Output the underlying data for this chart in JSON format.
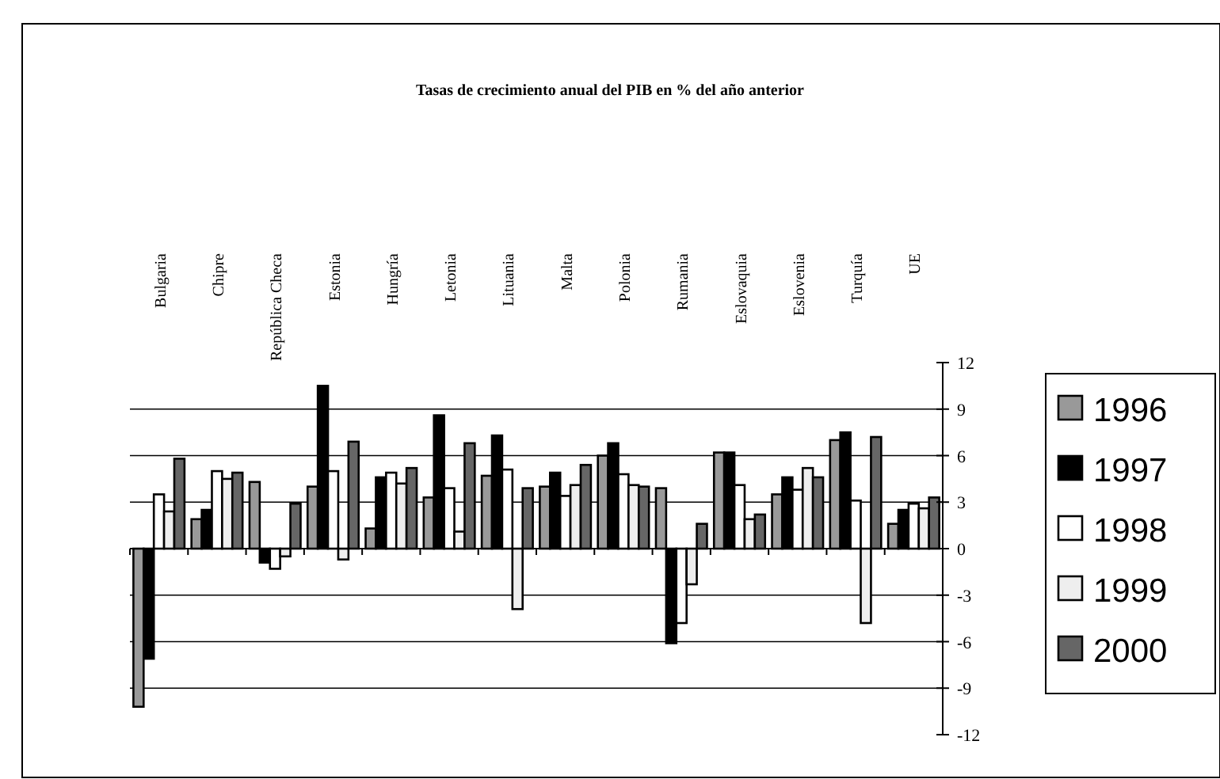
{
  "chart_data": {
    "type": "bar",
    "title": "Tasas de crecimiento anual del PIB en % del año anterior",
    "categories": [
      "Bulgaria",
      "Chipre",
      "República Checa",
      "Estonia",
      "Hungría",
      "Letonia",
      "Lituania",
      "Malta",
      "Polonia",
      "Rumania",
      "Eslovaquia",
      "Eslovenia",
      "Turquía",
      "UE"
    ],
    "series": [
      {
        "name": "1996",
        "color": "#999999",
        "values": [
          -10.2,
          1.9,
          4.3,
          4.0,
          1.3,
          3.3,
          4.7,
          4.0,
          6.0,
          3.9,
          6.2,
          3.5,
          7.0,
          1.6
        ]
      },
      {
        "name": "1997",
        "color": "#000000",
        "values": [
          -7.1,
          2.5,
          -0.9,
          10.5,
          4.6,
          8.6,
          7.3,
          4.9,
          6.8,
          -6.1,
          6.2,
          4.6,
          7.5,
          2.5
        ]
      },
      {
        "name": "1998",
        "color": "#ffffff",
        "values": [
          3.5,
          5.0,
          -1.3,
          5.0,
          4.9,
          3.9,
          5.1,
          3.4,
          4.8,
          -4.8,
          4.1,
          3.8,
          3.1,
          2.9
        ]
      },
      {
        "name": "1999",
        "color": "#eeeeee",
        "values": [
          2.4,
          4.5,
          -0.5,
          -0.7,
          4.2,
          1.1,
          -3.9,
          4.1,
          4.1,
          -2.3,
          1.9,
          5.2,
          -4.8,
          2.6
        ]
      },
      {
        "name": "2000",
        "color": "#666666",
        "values": [
          5.8,
          4.9,
          2.9,
          6.9,
          5.2,
          6.8,
          3.9,
          5.4,
          4.0,
          1.6,
          2.2,
          4.6,
          7.2,
          3.3
        ]
      }
    ],
    "ylim": [
      -12,
      12
    ],
    "yticks": [
      -12,
      -9,
      -6,
      -3,
      0,
      3,
      6,
      9,
      12
    ],
    "grid": "y",
    "legend": "right"
  }
}
